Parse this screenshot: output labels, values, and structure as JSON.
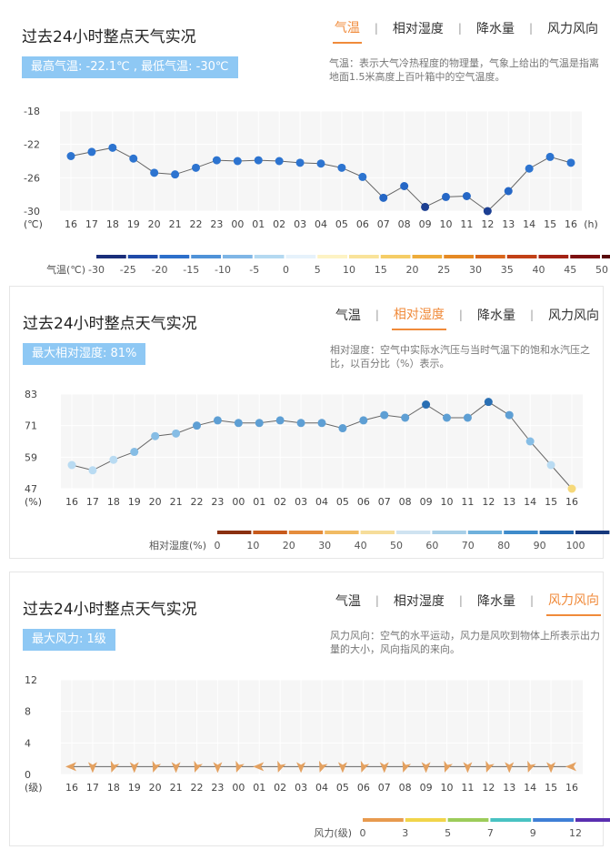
{
  "tabs": [
    "气温",
    "相对湿度",
    "降水量",
    "风力风向"
  ],
  "hours": [
    "16",
    "17",
    "18",
    "19",
    "20",
    "21",
    "22",
    "23",
    "00",
    "01",
    "02",
    "03",
    "04",
    "05",
    "06",
    "07",
    "08",
    "09",
    "10",
    "11",
    "12",
    "13",
    "14",
    "15",
    "16"
  ],
  "panels": {
    "temp": {
      "title": "过去24小时整点天气实况",
      "badge": "最高气温: -22.1℃ , 最低气温: -30℃",
      "active_tab": 0,
      "desc": "气温：表示大气冷热程度的物理量，气象上给出的气温是指离地面1.5米高度上百叶箱中的空气温度。",
      "y_unit": "(℃)",
      "x_unit": "(h)",
      "legend_label": "气温(℃)",
      "legend_ticks": [
        "-30",
        "-25",
        "-20",
        "-15",
        "-10",
        "-5",
        "0",
        "5",
        "10",
        "15",
        "20",
        "25",
        "30",
        "35",
        "40",
        "45",
        "50"
      ],
      "legend_colors": [
        "#1a2e7a",
        "#1f4aa8",
        "#2d6fca",
        "#4f92d8",
        "#7fb6e6",
        "#b4d9f1",
        "#e6f2fb",
        "#fdf3c4",
        "#f9e39a",
        "#f5cd66",
        "#eeac3a",
        "#e58a24",
        "#d9661c",
        "#c24117",
        "#a32214",
        "#7d1010",
        "#58080a"
      ]
    },
    "humidity": {
      "title": "过去24小时整点天气实况",
      "badge": "最大相对湿度: 81%",
      "active_tab": 1,
      "desc": "相对湿度：空气中实际水汽压与当时气温下的饱和水汽压之比，以百分比（%）表示。",
      "y_unit": "(%)",
      "legend_label": "相对湿度(%)",
      "legend_ticks": [
        "0",
        "10",
        "20",
        "30",
        "40",
        "50",
        "60",
        "70",
        "80",
        "90",
        "100"
      ],
      "legend_colors": [
        "#8a3010",
        "#c75a1c",
        "#e58d3c",
        "#f1bb63",
        "#f6dd9a",
        "#cfe3f1",
        "#a8cfe8",
        "#6fb1dc",
        "#3f8ccb",
        "#2265ad",
        "#16387d"
      ]
    },
    "wind": {
      "title": "过去24小时整点天气实况",
      "badge": "最大风力: 1级",
      "active_tab": 3,
      "desc": "风力风向：空气的水平运动，风力是风吹到物体上所表示出力量的大小，风向指风的来向。",
      "y_unit": "(级)",
      "legend_label": "风力(级)",
      "legend_ticks": [
        "0",
        "3",
        "5",
        "7",
        "9",
        "12"
      ],
      "legend_colors": [
        "#e89a4e",
        "#f1d54a",
        "#9ccc5a",
        "#48c2c2",
        "#3f7fd6",
        "#5a2fb0"
      ]
    }
  },
  "chart_data": [
    {
      "type": "line",
      "x": [
        "16",
        "17",
        "18",
        "19",
        "20",
        "21",
        "22",
        "23",
        "00",
        "01",
        "02",
        "03",
        "04",
        "05",
        "06",
        "07",
        "08",
        "09",
        "10",
        "11",
        "12",
        "13",
        "14",
        "15",
        "16"
      ],
      "values": [
        -23.4,
        -22.9,
        -22.4,
        -23.7,
        -25.4,
        -25.6,
        -24.8,
        -23.9,
        -24.0,
        -23.9,
        -24.0,
        -24.2,
        -24.3,
        -24.8,
        -25.9,
        -28.4,
        -27.0,
        -29.5,
        -28.3,
        -28.2,
        -30.0,
        -27.6,
        -24.9,
        -23.5,
        -24.2
      ],
      "yticks": [
        -18,
        -22,
        -26,
        -30
      ],
      "ylim": [
        -30,
        -18
      ],
      "xlabel": "(h)",
      "ylabel": "(℃)"
    },
    {
      "type": "line",
      "x": [
        "16",
        "17",
        "18",
        "19",
        "20",
        "21",
        "22",
        "23",
        "00",
        "01",
        "02",
        "03",
        "04",
        "05",
        "06",
        "07",
        "08",
        "09",
        "10",
        "11",
        "12",
        "13",
        "14",
        "15",
        "16"
      ],
      "values": [
        56,
        54,
        58,
        61,
        67,
        68,
        71,
        73,
        72,
        72,
        73,
        72,
        72,
        70,
        73,
        75,
        74,
        79,
        74,
        74,
        80,
        75,
        65,
        56,
        47
      ],
      "yticks": [
        83,
        71,
        59,
        47
      ],
      "ylim": [
        47,
        83
      ],
      "ylabel": "(%)"
    },
    {
      "type": "line",
      "x": [
        "16",
        "17",
        "18",
        "19",
        "20",
        "21",
        "22",
        "23",
        "00",
        "01",
        "02",
        "03",
        "04",
        "05",
        "06",
        "07",
        "08",
        "09",
        "10",
        "11",
        "12",
        "13",
        "14",
        "15",
        "16"
      ],
      "values": [
        1,
        1,
        1,
        1,
        1,
        1,
        1,
        1,
        1,
        1,
        1,
        1,
        1,
        1,
        1,
        1,
        1,
        1,
        1,
        1,
        1,
        1,
        1,
        1,
        1
      ],
      "yticks": [
        12,
        8,
        4,
        0
      ],
      "ylim": [
        0,
        12
      ],
      "ylabel": "(级)"
    }
  ]
}
